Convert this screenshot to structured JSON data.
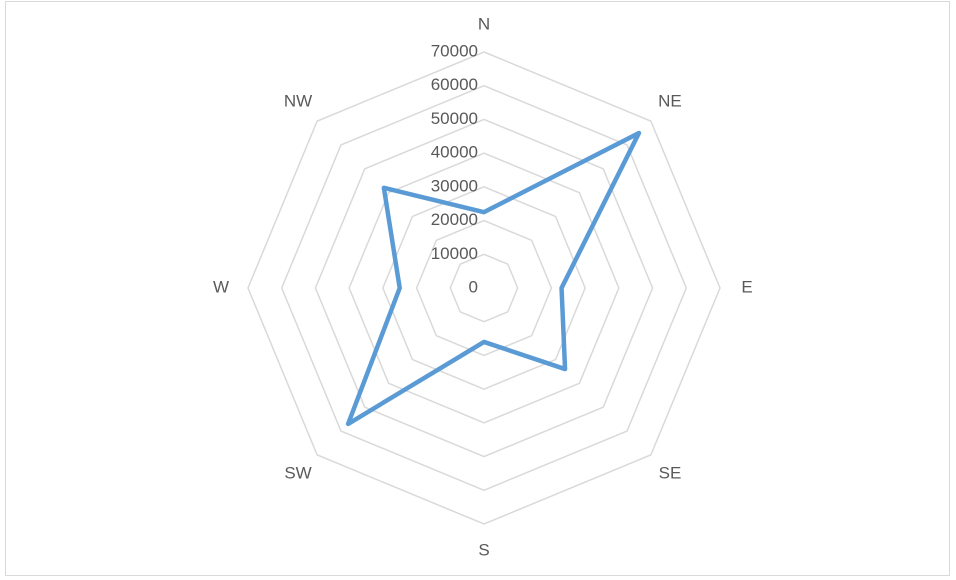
{
  "chart_data": {
    "type": "radar",
    "categories": [
      "N",
      "NE",
      "E",
      "SE",
      "S",
      "SW",
      "W",
      "NW"
    ],
    "values": [
      22500,
      65000,
      23000,
      34000,
      16000,
      57000,
      25000,
      42000
    ],
    "color": "#5b9bd5",
    "ylim": [
      0,
      70000
    ],
    "yticks": [
      0,
      10000,
      20000,
      30000,
      40000,
      50000,
      60000,
      70000
    ],
    "grid": true
  }
}
